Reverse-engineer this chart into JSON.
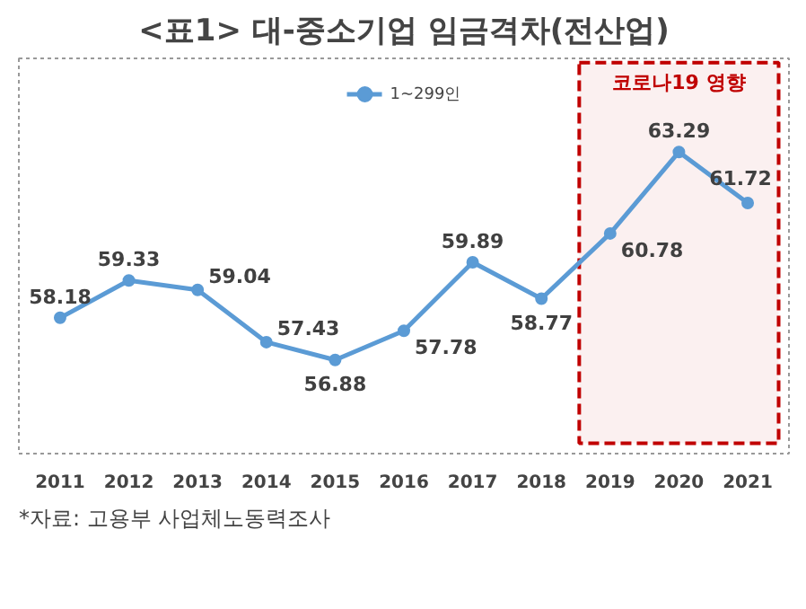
{
  "chart_data": {
    "type": "line",
    "title": "<표1> 대-중소기업 임금격차(전산업)",
    "categories": [
      "2011",
      "2012",
      "2013",
      "2014",
      "2015",
      "2016",
      "2017",
      "2018",
      "2019",
      "2020",
      "2021"
    ],
    "series": [
      {
        "name": "1~299인",
        "color": "#5b9bd5",
        "values": [
          58.18,
          59.33,
          59.04,
          57.43,
          56.88,
          57.78,
          59.89,
          58.77,
          60.78,
          63.29,
          61.72
        ]
      }
    ],
    "data_labels": true,
    "marker": "circle",
    "legend": "top",
    "grid": false,
    "tick_labels": "x",
    "bands": [
      {
        "axis": "x",
        "from": "2019",
        "to": "2021",
        "label": "코로나19 영향",
        "color": "#c00000"
      }
    ],
    "annotations": [
      "*자료: 고용부 사업체노동력조사"
    ]
  }
}
